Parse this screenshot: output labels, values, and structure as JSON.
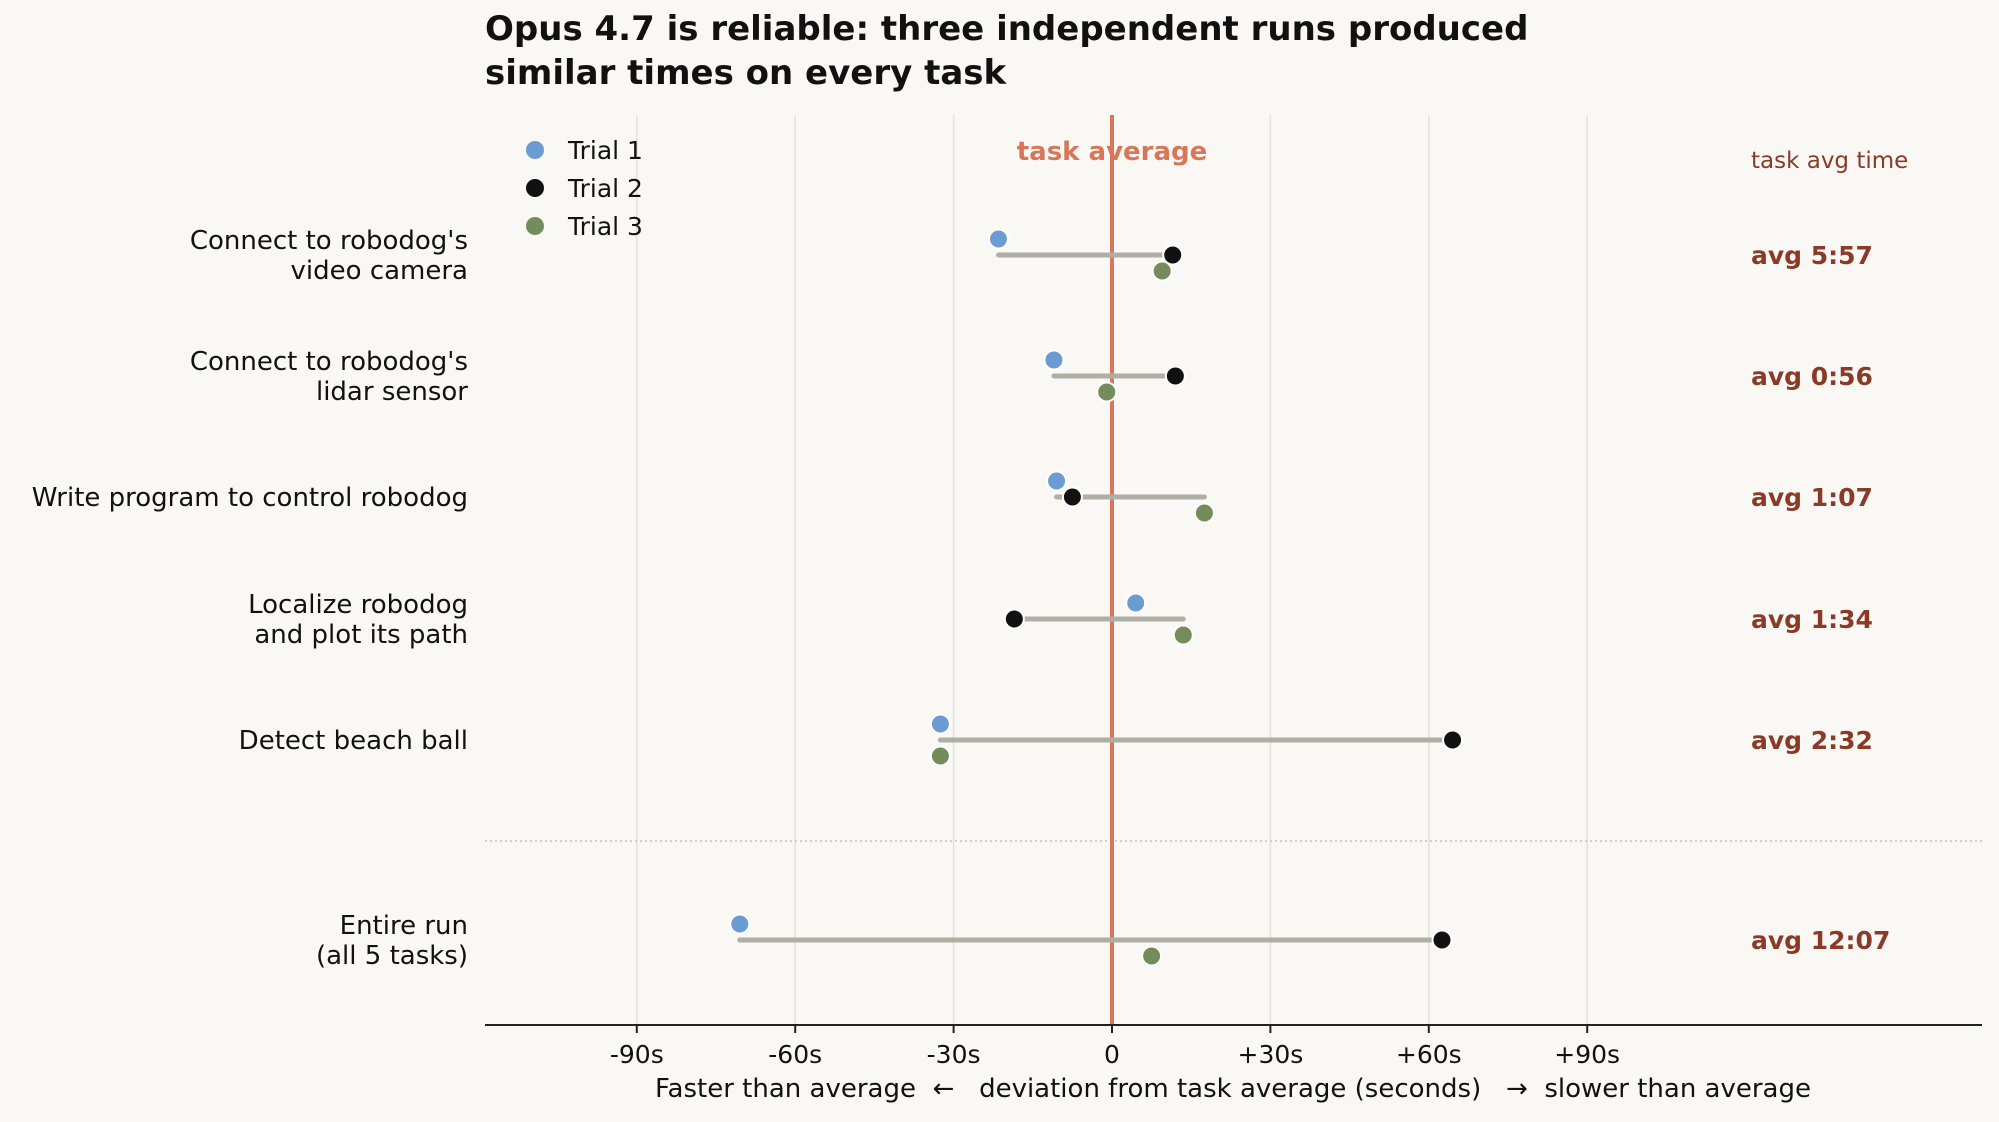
{
  "chart_data": {
    "type": "scatter",
    "title": "Opus 4.7 is reliable: three independent runs produced\nsimilar times on every task",
    "xlabel": "Faster than average  ←   deviation from task average (seconds)   →  slower than average",
    "ylabel": "",
    "xlim": [
      -98,
      280
    ],
    "xticks": [
      {
        "value": -90,
        "label": "-90s"
      },
      {
        "value": -60,
        "label": "-60s"
      },
      {
        "value": -30,
        "label": "-30s"
      },
      {
        "value": 0,
        "label": "0"
      },
      {
        "value": 30,
        "label": "+30s"
      },
      {
        "value": 60,
        "label": "+60s"
      },
      {
        "value": 90,
        "label": "+90s"
      }
    ],
    "grid": "vertical",
    "legend_position": "top-left",
    "reference_line": {
      "value": 0,
      "label": "task average"
    },
    "right_column_header": "task avg time",
    "categories": [
      {
        "label": "Connect to robodog's\nvideo camera",
        "avg": "avg 5:57"
      },
      {
        "label": "Connect to robodog's\nlidar sensor",
        "avg": "avg 0:56"
      },
      {
        "label": "Write program to control robodog",
        "avg": "avg 1:07"
      },
      {
        "label": "Localize robodog\nand plot its path",
        "avg": "avg 1:34"
      },
      {
        "label": "Detect beach ball",
        "avg": "avg 2:32"
      },
      {
        "label": "Entire run\n(all 5 tasks)",
        "avg": "avg 12:07"
      }
    ],
    "series": [
      {
        "name": "Trial 1",
        "color": "#6b9bd1",
        "values": [
          -21.5,
          -11,
          -10.5,
          4.5,
          -32.5,
          -70.5
        ]
      },
      {
        "name": "Trial 2",
        "color": "#111111",
        "values": [
          11.5,
          12,
          -7.5,
          -18.5,
          64.5,
          62.5
        ]
      },
      {
        "name": "Trial 3",
        "color": "#748c5c",
        "values": [
          9.5,
          -1,
          17.5,
          13.5,
          -32.5,
          7.5
        ]
      }
    ],
    "colors": {
      "reference_line": "#d9765a",
      "avg_text": "#8b3a28",
      "range_line": "#b0afa6",
      "grid": "#e3e1dc",
      "axis": "#222222"
    }
  }
}
